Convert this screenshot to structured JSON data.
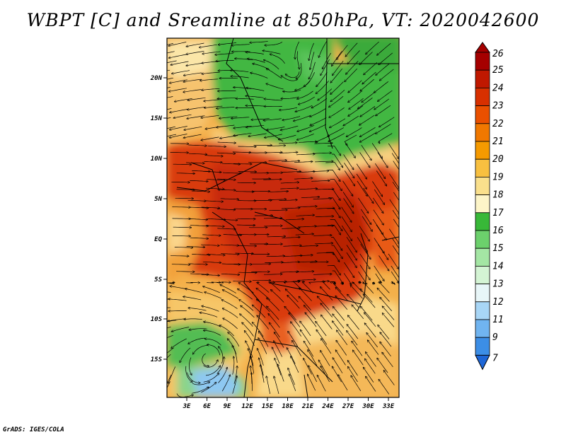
{
  "title": "WBPT [C] and Sreamline at 850hPa, VT: 2020042600",
  "credit": "GrADS: IGES/COLA",
  "map": {
    "lat_labels": [
      "20N",
      "15N",
      "10N",
      "5N",
      "EQ",
      "5S",
      "10S",
      "15S"
    ],
    "lon_labels": [
      "3E",
      "6E",
      "9E",
      "12E",
      "15E",
      "18E",
      "21E",
      "24E",
      "27E",
      "30E",
      "33E"
    ]
  },
  "colorbar": {
    "levels": [
      "26",
      "25",
      "24",
      "23",
      "22",
      "21",
      "20",
      "19",
      "18",
      "17",
      "16",
      "15",
      "14",
      "13",
      "12",
      "11",
      "9",
      "7"
    ],
    "colors": [
      "#a50000",
      "#c01800",
      "#d83000",
      "#ea5000",
      "#f07800",
      "#f59a00",
      "#f8c040",
      "#fae08c",
      "#fdf5c8",
      "#38b838",
      "#6cd06c",
      "#a4e6a4",
      "#d4f4d4",
      "#e8f6f8",
      "#a8d6f6",
      "#70b4f0",
      "#3c8ee6",
      "#1e66d6"
    ]
  }
}
